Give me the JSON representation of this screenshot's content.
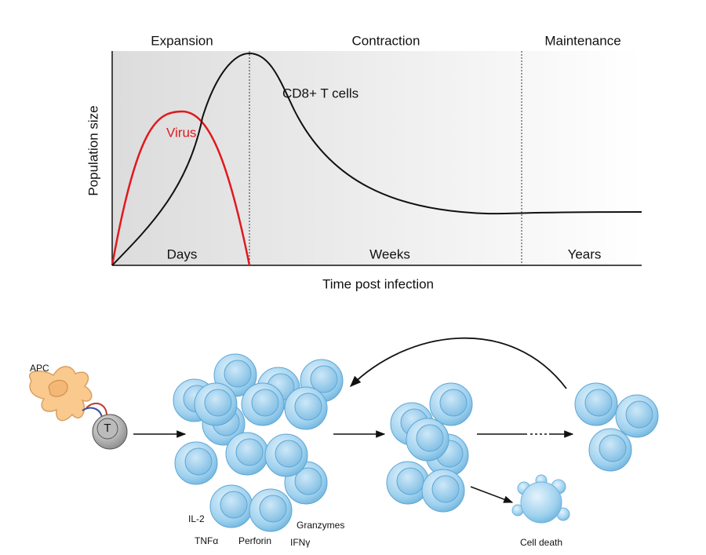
{
  "phases": [
    "Expansion",
    "Contraction",
    "Maintenance"
  ],
  "time_scales": [
    "Days",
    "Weeks",
    "Years"
  ],
  "axes": {
    "y_label": "Population size",
    "x_label": "Time post infection"
  },
  "curves": {
    "t_cells": "CD8+ T cells",
    "virus": "Virus"
  },
  "cells": {
    "apc": "APC",
    "t_cell": "T",
    "death": "Cell death"
  },
  "cytokines": [
    "IL-2",
    "TNFα",
    "Perforin",
    "Granzymes",
    "IFNγ"
  ]
}
